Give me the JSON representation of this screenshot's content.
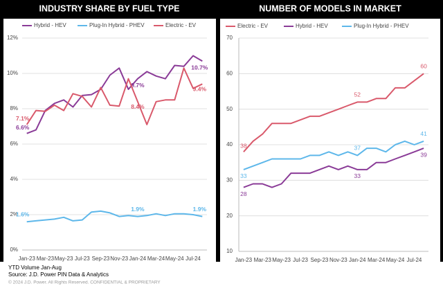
{
  "chart_data": [
    {
      "type": "line",
      "title": "INDUSTRY SHARE BY FUEL TYPE",
      "categories": [
        "Jan-23",
        null,
        "Mar-23",
        null,
        "May-23",
        null,
        "Jul-23",
        null,
        "Sep-23",
        null,
        "Nov-23",
        null,
        "Jan-24",
        null,
        "Mar-24",
        null,
        "May-24",
        null,
        "Jul-24",
        null
      ],
      "ylim": [
        0,
        12
      ],
      "yticks": [
        {
          "value": 0,
          "label": "0%"
        },
        {
          "value": 2,
          "label": "2%"
        },
        {
          "value": 4,
          "label": "4%"
        },
        {
          "value": 6,
          "label": "6%"
        },
        {
          "value": 8,
          "label": "8%"
        },
        {
          "value": 10,
          "label": "10%"
        },
        {
          "value": 12,
          "label": "12%"
        }
      ],
      "grid": true,
      "series": [
        {
          "name": "Hybrid - HEV",
          "color": "#8a3b97",
          "values": [
            6.6,
            6.8,
            7.9,
            8.3,
            8.5,
            8.1,
            8.75,
            8.8,
            9.1,
            9.9,
            10.3,
            9.1,
            9.7,
            10.1,
            9.85,
            9.7,
            10.45,
            10.4,
            11.0,
            10.7
          ],
          "value_labels": [
            "6.6%",
            null,
            null,
            null,
            null,
            null,
            null,
            null,
            null,
            null,
            null,
            null,
            "9.7%",
            null,
            null,
            null,
            null,
            null,
            null,
            "10.7%"
          ]
        },
        {
          "name": "Plug-In Hybrid - PHEV",
          "color": "#5db7ea",
          "values": [
            1.6,
            1.65,
            1.7,
            1.75,
            1.85,
            1.65,
            1.7,
            2.15,
            2.2,
            2.1,
            1.9,
            1.95,
            1.9,
            1.95,
            2.05,
            1.95,
            2.05,
            2.05,
            2.0,
            1.9
          ],
          "value_labels": [
            "1.6%",
            null,
            null,
            null,
            null,
            null,
            null,
            null,
            null,
            null,
            null,
            null,
            "1.9%",
            null,
            null,
            null,
            null,
            null,
            null,
            "1.9%"
          ]
        },
        {
          "name": "Electric - EV",
          "color": "#d9596b",
          "values": [
            7.1,
            7.9,
            7.85,
            8.2,
            7.9,
            8.85,
            8.7,
            8.1,
            9.2,
            8.2,
            8.15,
            9.7,
            8.4,
            7.1,
            8.4,
            8.5,
            8.5,
            10.3,
            9.15,
            9.4
          ],
          "value_labels": [
            "7.1%",
            null,
            null,
            null,
            null,
            null,
            null,
            null,
            null,
            null,
            null,
            null,
            "8.4%",
            null,
            null,
            null,
            null,
            null,
            null,
            "9.4%"
          ]
        }
      ]
    },
    {
      "type": "line",
      "title": "NUMBER OF MODELS IN MARKET",
      "categories": [
        "Jan-23",
        null,
        "Mar-23",
        null,
        "May-23",
        null,
        "Jul-23",
        null,
        "Sep-23",
        null,
        "Nov-23",
        null,
        "Jan-24",
        null,
        "Mar-24",
        null,
        "May-24",
        null,
        "Jul-24",
        null
      ],
      "ylim": [
        10,
        70
      ],
      "yticks": [
        10,
        20,
        30,
        40,
        50,
        60,
        70
      ],
      "grid": true,
      "series": [
        {
          "name": "Electric - EV",
          "color": "#d9596b",
          "values": [
            38,
            41,
            43,
            46,
            46,
            46,
            47,
            48,
            48,
            49,
            50,
            51,
            52,
            52,
            53,
            53,
            56,
            56,
            58,
            60
          ],
          "labeled": [
            0,
            12,
            19
          ]
        },
        {
          "name": "Hybrid - HEV",
          "color": "#8a3b97",
          "values": [
            28,
            29,
            29,
            28,
            29,
            32,
            32,
            32,
            33,
            34,
            33,
            34,
            33,
            33,
            35,
            35,
            36,
            37,
            38,
            39
          ],
          "labeled": [
            0,
            12,
            19
          ]
        },
        {
          "name": "Plug-In Hybrid - PHEV",
          "color": "#5db7ea",
          "values": [
            33,
            34,
            35,
            36,
            36,
            36,
            36,
            37,
            37,
            38,
            37,
            38,
            37,
            39,
            39,
            38,
            40,
            41,
            40,
            41
          ],
          "labeled": [
            0,
            12,
            19
          ]
        }
      ]
    }
  ],
  "footer": [
    "YTD Volume Jan-Aug",
    "Source: J.D. Power PIN Data & Analytics",
    "© 2024 J.D. Power. All Rights Reserved. CONFIDENTIAL & PROPRIETARY"
  ]
}
